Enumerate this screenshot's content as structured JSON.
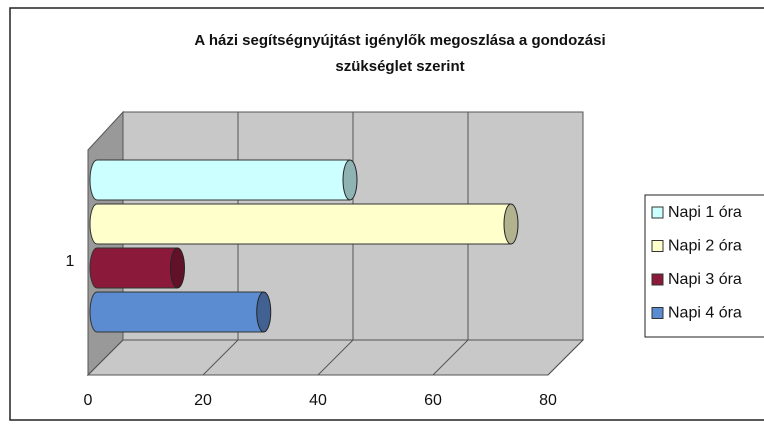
{
  "chart_data": {
    "type": "bar3d-cylinder",
    "title": "A házi segítségnyújtást igénylők megoszlása a gondozási szükséglet szerint",
    "categories": [
      "1"
    ],
    "series": [
      {
        "name": "Napi 1 óra",
        "color": "#ccffff",
        "values": [
          44
        ]
      },
      {
        "name": "Napi 2 óra",
        "color": "#ffffcc",
        "values": [
          72
        ]
      },
      {
        "name": "Napi 3 óra",
        "color": "#8b1a3a",
        "values": [
          14
        ]
      },
      {
        "name": "Napi 4 óra",
        "color": "#5b8bd0",
        "values": [
          29
        ]
      }
    ],
    "xlim": [
      0,
      80
    ],
    "xticks": [
      0,
      20,
      40,
      60,
      80
    ],
    "grid": true,
    "legend": "right"
  }
}
